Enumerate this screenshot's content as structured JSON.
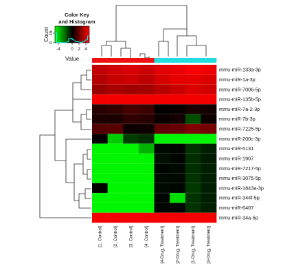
{
  "chart_data": {
    "type": "heatmap",
    "color_scale": {
      "low": "#00ff00",
      "mid": "#000000",
      "high": "#ff0000",
      "range": [
        -5,
        5
      ]
    },
    "color_key": {
      "title_line1": "Color Key",
      "title_line2": "and Histogram",
      "x_label": "Value",
      "y_label": "Count",
      "x_ticks": [
        "-4",
        "0",
        "2",
        "4"
      ],
      "y_ticks": [
        "0",
        "15"
      ],
      "histogram_color": "#00ffff"
    },
    "columns": [
      "[1, Control]",
      "[2, Control]",
      "[3, Control]",
      "[4, Control]",
      "[4-Drug, Treatment]",
      "[2-Drug, Treatment]",
      "[1-Drug, Treatment]",
      "[3-Drug, Treatment]"
    ],
    "column_groups": [
      "Control",
      "Control",
      "Control",
      "Control",
      "Treatment",
      "Treatment",
      "Treatment",
      "Treatment"
    ],
    "group_colors": {
      "Control": "#ee1111",
      "Treatment": "#22dddd"
    },
    "rows": [
      "mmu-miR-133a-3p",
      "mmu-miR-1a-3p",
      "mmu-miR-7006-5p",
      "mmu-miR-135b-5p",
      "mmu-miR-7a-2-3p",
      "mmu-miR-7b-3p",
      "mmu-miR-7225-5p",
      "mmu-miR-200c-3p",
      "mmu-miR-5131",
      "mmu-miR-1907",
      "mmu-miR-7217-5p",
      "mmu-miR-3075-5p",
      "mmu-miR-1843a-3p",
      "mmu-miR-344f-5p",
      "mmu-miR-6407",
      "mmu-miR-34a-5p"
    ],
    "values": [
      [
        3.8,
        4.1,
        4.3,
        4.0,
        4.4,
        4.6,
        4.9,
        4.7
      ],
      [
        3.5,
        3.9,
        4.0,
        3.7,
        4.2,
        4.5,
        4.5,
        4.3
      ],
      [
        3.0,
        3.3,
        3.1,
        3.2,
        3.6,
        3.9,
        4.3,
        4.1
      ],
      [
        4.8,
        4.8,
        4.8,
        4.8,
        4.8,
        4.8,
        4.8,
        4.8
      ],
      [
        0.8,
        1.0,
        1.4,
        1.2,
        0.1,
        0.2,
        0.5,
        0.4
      ],
      [
        0.6,
        0.5,
        0.9,
        0.8,
        0.2,
        0.4,
        -1.5,
        0.3
      ],
      [
        1.6,
        1.7,
        0.2,
        0.3,
        1.9,
        2.0,
        2.5,
        2.3
      ],
      [
        0.1,
        -4.0,
        -1.2,
        -0.9,
        -4.8,
        -4.8,
        -4.8,
        -4.8
      ],
      [
        -4.8,
        -4.8,
        -4.8,
        -3.5,
        -0.2,
        -0.1,
        -1.0,
        -0.6
      ],
      [
        -4.8,
        -4.8,
        -4.8,
        -4.8,
        -0.3,
        -0.1,
        -0.9,
        -0.5
      ],
      [
        -4.8,
        -4.8,
        -4.8,
        -4.8,
        -0.1,
        -0.2,
        -0.9,
        -0.6
      ],
      [
        -4.8,
        -4.8,
        -4.8,
        -4.8,
        -0.2,
        -0.2,
        -1.0,
        -0.6
      ],
      [
        0.1,
        -4.8,
        -4.8,
        -4.8,
        -0.2,
        -0.1,
        -1.1,
        -0.6
      ],
      [
        -4.8,
        -4.8,
        -4.8,
        -4.8,
        -0.1,
        -4.4,
        -1.0,
        -0.6
      ],
      [
        -4.8,
        -4.8,
        -4.8,
        -4.8,
        -0.1,
        -0.1,
        -1.0,
        -0.6
      ],
      [
        4.8,
        4.8,
        4.8,
        4.8,
        4.8,
        4.8,
        4.8,
        4.8
      ]
    ]
  }
}
